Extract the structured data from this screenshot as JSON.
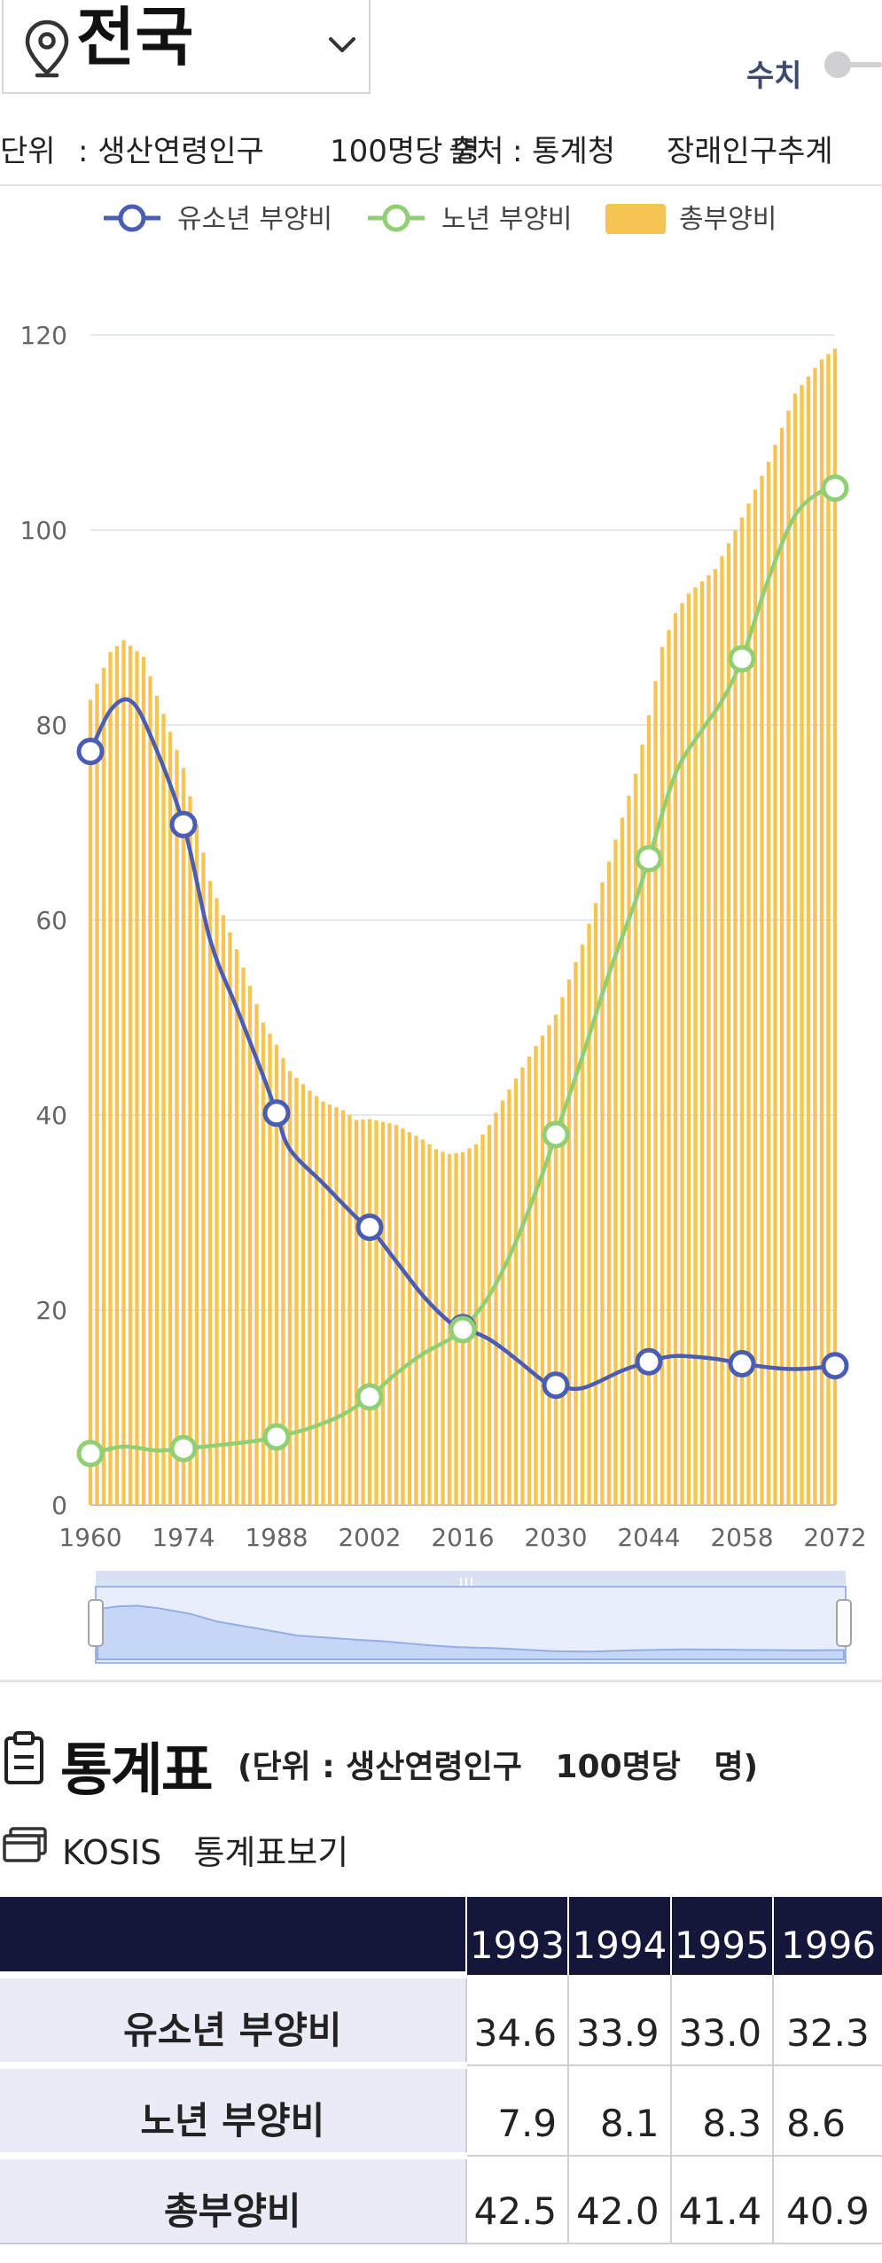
{
  "header": {
    "region": "전국",
    "mode_label": "수치",
    "unit_label": "단위",
    "unit_value": ": 생산연령인구",
    "unit_suffix": "100명당 명",
    "source_label": "출처",
    "source_value": ": 통계청",
    "source_detail": "장래인구추계"
  },
  "colors": {
    "youth": "#4a5db5",
    "elderly": "#90cf74",
    "total": "#f7c453",
    "grid": "#e3e6f3",
    "header_bg": "#14163a",
    "label_bg": "#e9ecf6"
  },
  "chart_data": {
    "type": "bar+line",
    "categories_start": 1960,
    "categories_end": 2072,
    "x_ticks": [
      "1960",
      "1974",
      "1988",
      "2002",
      "2016",
      "2030",
      "2044",
      "2058",
      "2072"
    ],
    "y_ticks": [
      "0",
      "20",
      "40",
      "60",
      "80",
      "100",
      "120"
    ],
    "ylim": [
      0,
      120
    ],
    "legend": [
      "유소년 부양비",
      "노년 부양비",
      "총부양비"
    ],
    "series": [
      {
        "name": "유소년 부양비",
        "type": "line",
        "points": [
          [
            1960,
            77.3
          ],
          [
            1963,
            81.5
          ],
          [
            1966,
            82.5
          ],
          [
            1969,
            79.0
          ],
          [
            1974,
            69.8
          ],
          [
            1978,
            58.0
          ],
          [
            1982,
            51.0
          ],
          [
            1986,
            44.0
          ],
          [
            1988,
            40.2
          ],
          [
            1990,
            36.5
          ],
          [
            1995,
            33.0
          ],
          [
            2000,
            29.5
          ],
          [
            2002,
            28.5
          ],
          [
            2006,
            25.0
          ],
          [
            2010,
            21.5
          ],
          [
            2014,
            18.8
          ],
          [
            2016,
            18.2
          ],
          [
            2020,
            17.0
          ],
          [
            2024,
            15.0
          ],
          [
            2028,
            12.8
          ],
          [
            2030,
            12.3
          ],
          [
            2034,
            12.0
          ],
          [
            2040,
            13.8
          ],
          [
            2044,
            14.7
          ],
          [
            2048,
            15.3
          ],
          [
            2054,
            15.0
          ],
          [
            2058,
            14.5
          ],
          [
            2064,
            14.0
          ],
          [
            2068,
            14.0
          ],
          [
            2072,
            14.3
          ]
        ],
        "markers": [
          [
            1960,
            77.3
          ],
          [
            1974,
            69.8
          ],
          [
            1988,
            40.2
          ],
          [
            2002,
            28.5
          ],
          [
            2016,
            18.2
          ],
          [
            2030,
            12.3
          ],
          [
            2044,
            14.7
          ],
          [
            2058,
            14.5
          ],
          [
            2072,
            14.3
          ]
        ]
      },
      {
        "name": "노년 부양비",
        "type": "line",
        "points": [
          [
            1960,
            5.3
          ],
          [
            1965,
            6.0
          ],
          [
            1970,
            5.6
          ],
          [
            1974,
            5.8
          ],
          [
            1980,
            6.2
          ],
          [
            1985,
            6.6
          ],
          [
            1988,
            7.0
          ],
          [
            1993,
            7.9
          ],
          [
            1998,
            9.3
          ],
          [
            2002,
            11.1
          ],
          [
            2006,
            13.5
          ],
          [
            2010,
            15.5
          ],
          [
            2014,
            17.0
          ],
          [
            2016,
            18.0
          ],
          [
            2020,
            21.5
          ],
          [
            2024,
            27.0
          ],
          [
            2028,
            34.0
          ],
          [
            2030,
            38.0
          ],
          [
            2034,
            46.0
          ],
          [
            2038,
            54.5
          ],
          [
            2042,
            62.0
          ],
          [
            2044,
            66.3
          ],
          [
            2048,
            75.0
          ],
          [
            2052,
            79.5
          ],
          [
            2055,
            82.5
          ],
          [
            2058,
            86.8
          ],
          [
            2062,
            95.0
          ],
          [
            2066,
            101.5
          ],
          [
            2070,
            104.0
          ],
          [
            2072,
            104.3
          ]
        ],
        "markers": [
          [
            1960,
            5.3
          ],
          [
            1974,
            5.8
          ],
          [
            1988,
            7.0
          ],
          [
            2002,
            11.1
          ],
          [
            2016,
            18.0
          ],
          [
            2030,
            38.0
          ],
          [
            2044,
            66.3
          ],
          [
            2058,
            86.8
          ],
          [
            2072,
            104.3
          ]
        ]
      },
      {
        "name": "총부양비",
        "type": "bar",
        "anchors": [
          [
            1960,
            82.6
          ],
          [
            1963,
            87.5
          ],
          [
            1965,
            88.7
          ],
          [
            1968,
            87.0
          ],
          [
            1970,
            83.0
          ],
          [
            1974,
            75.6
          ],
          [
            1978,
            64.0
          ],
          [
            1982,
            57.0
          ],
          [
            1986,
            49.5
          ],
          [
            1988,
            47.2
          ],
          [
            1990,
            44.5
          ],
          [
            1993,
            42.5
          ],
          [
            1995,
            41.4
          ],
          [
            1998,
            40.5
          ],
          [
            2000,
            39.5
          ],
          [
            2002,
            39.6
          ],
          [
            2006,
            39.0
          ],
          [
            2010,
            37.5
          ],
          [
            2012,
            36.5
          ],
          [
            2014,
            36.0
          ],
          [
            2016,
            36.2
          ],
          [
            2018,
            37.0
          ],
          [
            2020,
            39.0
          ],
          [
            2022,
            41.5
          ],
          [
            2026,
            46.0
          ],
          [
            2030,
            50.3
          ],
          [
            2034,
            57.5
          ],
          [
            2038,
            66.0
          ],
          [
            2042,
            75.0
          ],
          [
            2044,
            81.0
          ],
          [
            2046,
            88.0
          ],
          [
            2048,
            91.5
          ],
          [
            2050,
            93.5
          ],
          [
            2054,
            96.0
          ],
          [
            2058,
            101.3
          ],
          [
            2062,
            107.0
          ],
          [
            2066,
            114.0
          ],
          [
            2070,
            117.5
          ],
          [
            2072,
            118.6
          ]
        ]
      }
    ]
  },
  "stats": {
    "title": "통계표",
    "unit_text": "(단위 : 생산연령인구   100명당   명)",
    "kosis_label": "KOSIS   통계표보기",
    "years": [
      "1993",
      "1994",
      "1995",
      "1996"
    ],
    "rows": [
      {
        "label": "유소년 부양비",
        "values": [
          "34.6",
          "33.9",
          "33.0",
          "32.3"
        ]
      },
      {
        "label": "노년 부양비",
        "values": [
          "7.9",
          "8.1",
          "8.3",
          "8.6"
        ]
      },
      {
        "label": "총부양비",
        "values": [
          "42.5",
          "42.0",
          "41.4",
          "40.9"
        ]
      }
    ]
  }
}
